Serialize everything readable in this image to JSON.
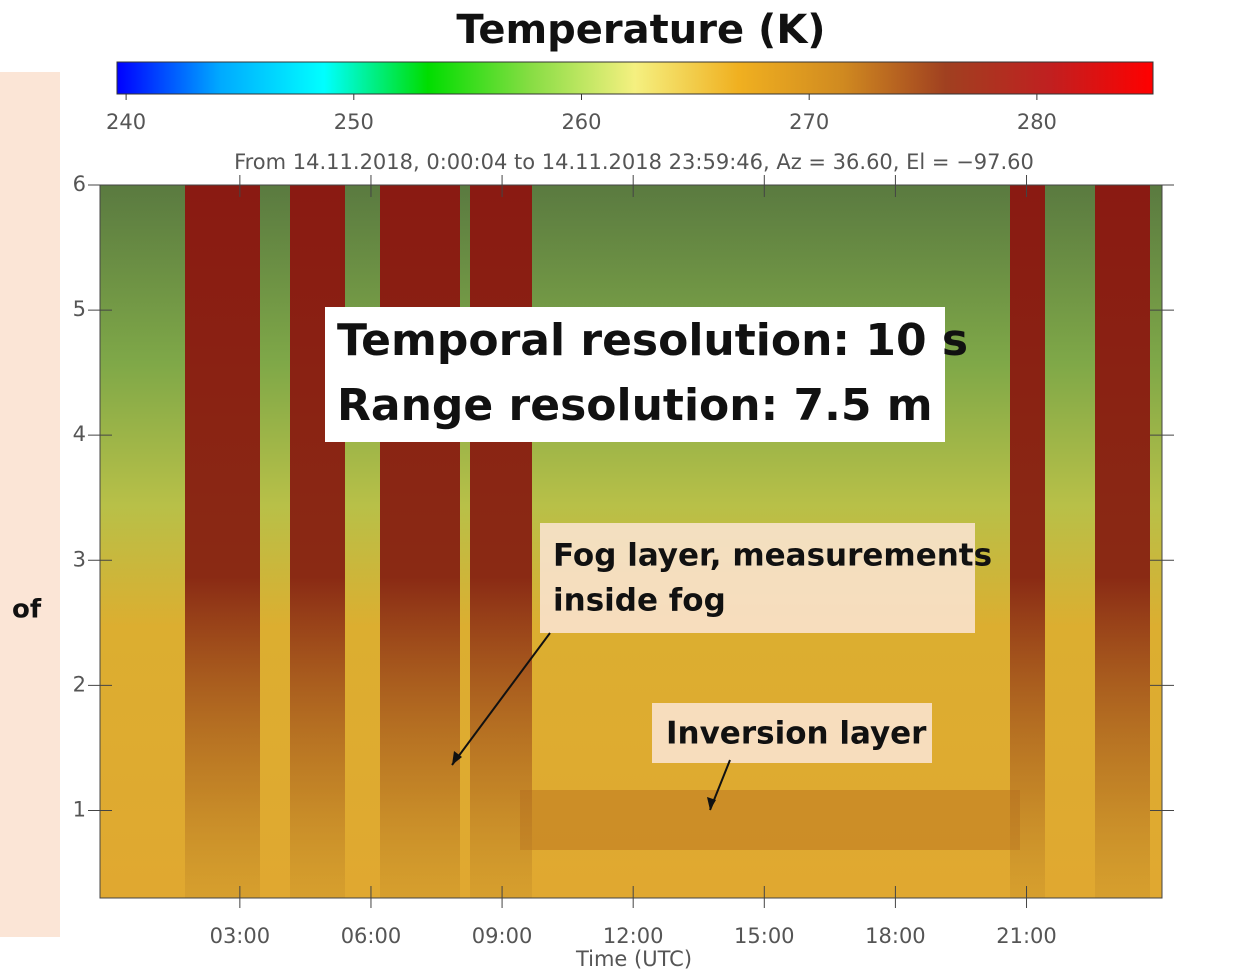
{
  "chart_data": {
    "type": "heatmap",
    "title": "Temperature (K)",
    "subtitle": "From 14.11.2018, 0:00:04 to 14.11.2018 23:59:46, Az =  36.60, El = −97.60",
    "colormap": [
      "#0000ff",
      "#00aaff",
      "#00ffff",
      "#00dd00",
      "#88dd44",
      "#f5f080",
      "#f0b020",
      "#d08a20",
      "#a04020",
      "#c02020",
      "#ff0000"
    ],
    "clim": [
      239.6,
      285.1
    ],
    "cticks": [
      240,
      250,
      260,
      270,
      280
    ],
    "x_label": "Time (UTC)",
    "xlim": [
      -0.2,
      24.1
    ],
    "xticks": [
      {
        "value": 3,
        "label": "03:00"
      },
      {
        "value": 6,
        "label": "06:00"
      },
      {
        "value": 9,
        "label": "09:00"
      },
      {
        "value": 12,
        "label": "12:00"
      },
      {
        "value": 15,
        "label": "15:00"
      },
      {
        "value": 18,
        "label": "18:00"
      },
      {
        "value": 21,
        "label": "21:00"
      }
    ],
    "ylim": [
      0.3,
      6
    ],
    "yticks": [
      1,
      2,
      3,
      4,
      5,
      6
    ],
    "annotations": [
      "Temporal resolution: 10 s",
      "Range resolution: 7.5 m",
      "Fog layer, measurements",
      "inside fog",
      "Inversion layer",
      "of"
    ]
  }
}
